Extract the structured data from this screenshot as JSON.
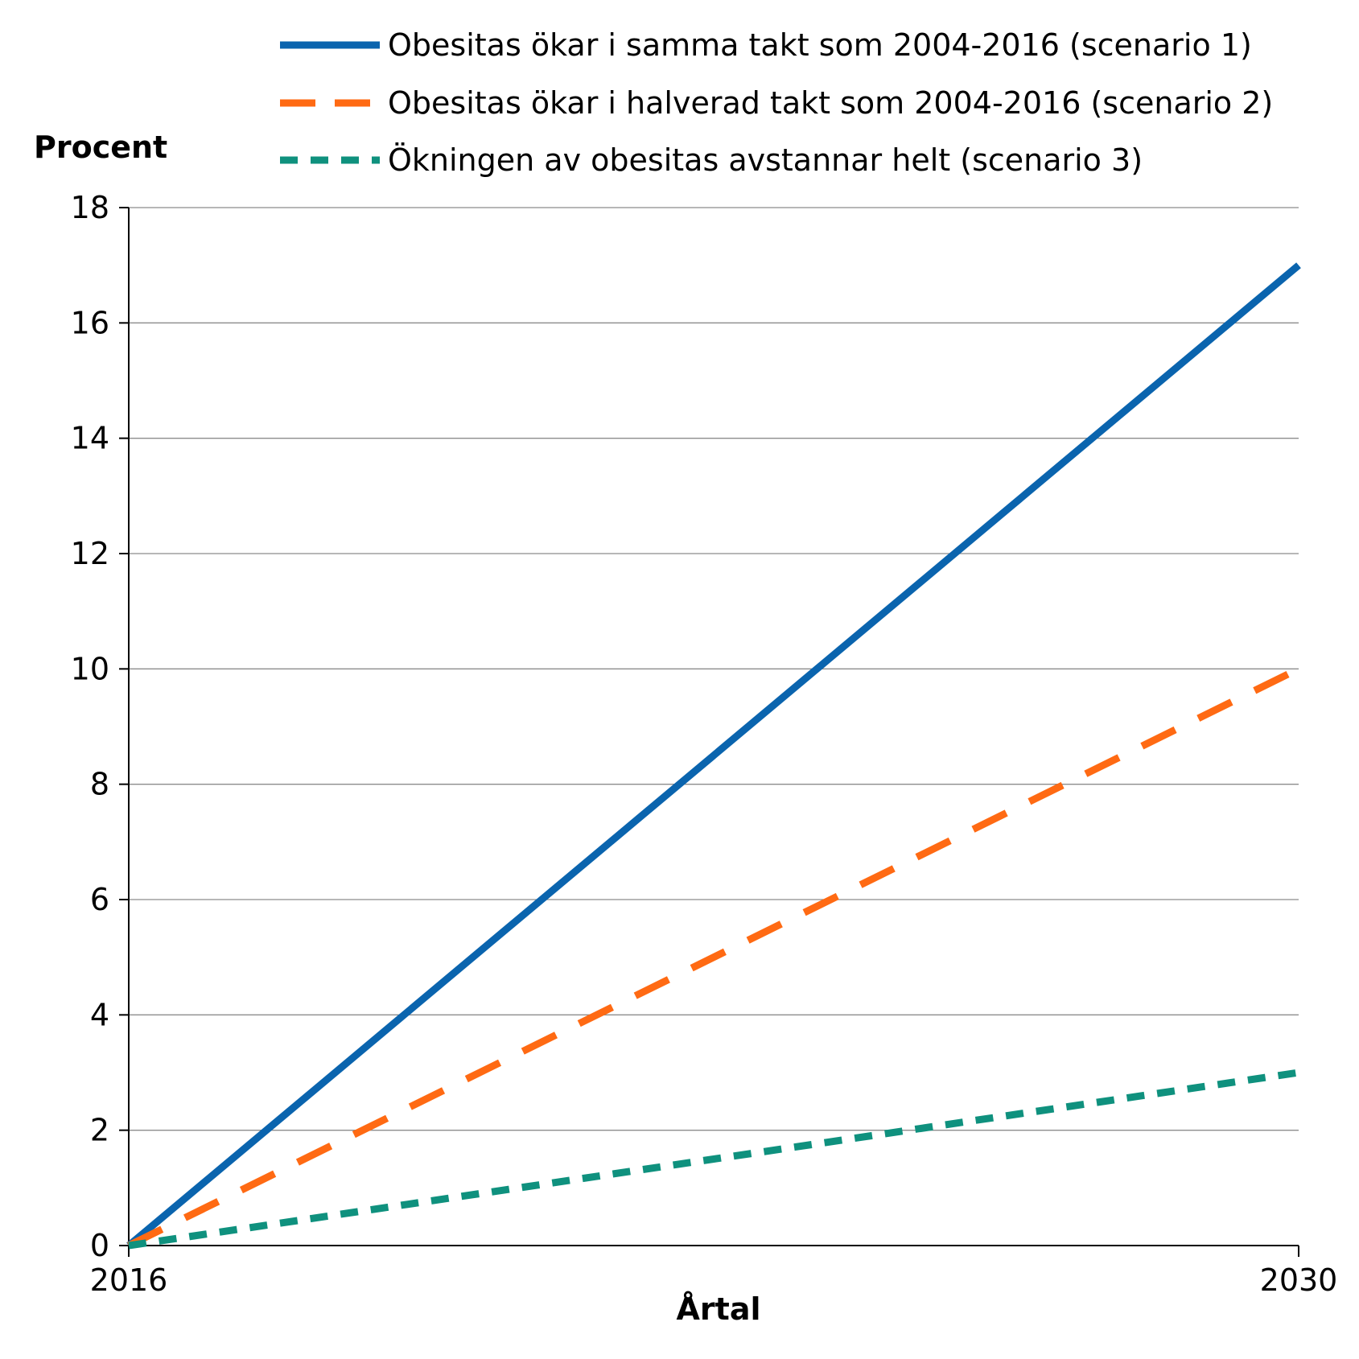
{
  "chart_data": {
    "type": "line",
    "x": [
      2016,
      2030
    ],
    "xlabel": "Årtal",
    "ylabel": "Procent",
    "xlim": [
      2016,
      2030
    ],
    "ylim": [
      0,
      18
    ],
    "x_ticks": [
      "2016",
      "2030"
    ],
    "y_ticks": [
      0,
      2,
      4,
      6,
      8,
      10,
      12,
      14,
      16,
      18
    ],
    "grid": "horizontal",
    "legend_position": "top",
    "series": [
      {
        "name": "Obesitas ökar i samma takt som 2004-2016 (scenario 1)",
        "values": [
          0,
          17
        ],
        "color": "#0a64ae",
        "style": "solid"
      },
      {
        "name": "Obesitas ökar i halverad takt som 2004-2016 (scenario 2)",
        "values": [
          0,
          10
        ],
        "color": "#ff6a13",
        "style": "long-dash"
      },
      {
        "name": "Ökningen av obesitas avstannar helt (scenario 3)",
        "values": [
          0,
          3
        ],
        "color": "#0f917e",
        "style": "short-dash"
      }
    ]
  }
}
